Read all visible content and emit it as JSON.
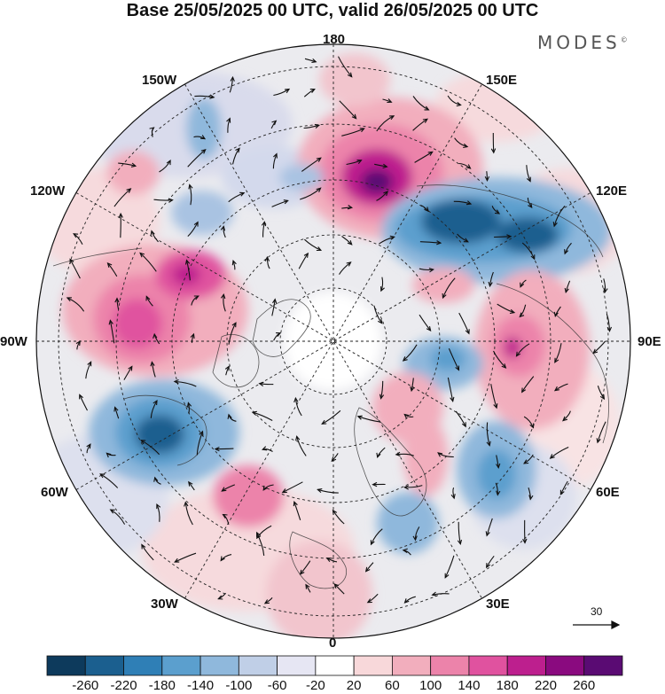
{
  "title": "Base 25/05/2025 00 UTC, valid 26/05/2025 00 UTC",
  "brand": "MODES",
  "brand_mark": "©",
  "longitude_labels": {
    "n180": "180",
    "e150": "150E",
    "e120": "120E",
    "e90": "90E",
    "e60": "60E",
    "e30": "30E",
    "s0": "0",
    "w30": "30W",
    "w60": "60W",
    "w90": "90W",
    "w120": "120W",
    "w150": "150W"
  },
  "vector_scale": "30",
  "colorbar": {
    "colors": [
      "#0d3a5c",
      "#1b5f8f",
      "#2f7fb6",
      "#5b9fce",
      "#8fb8dc",
      "#c0cfe7",
      "#e6e6f3",
      "#ffffff",
      "#f8d8da",
      "#f2aebd",
      "#ec83aa",
      "#e0529f",
      "#bd1f8e",
      "#8a0a7f",
      "#5a0b73"
    ],
    "labels": [
      "-260",
      "-220",
      "-180",
      "-140",
      "-100",
      "-60",
      "-20",
      "20",
      "60",
      "100",
      "140",
      "180",
      "220",
      "260"
    ]
  }
}
